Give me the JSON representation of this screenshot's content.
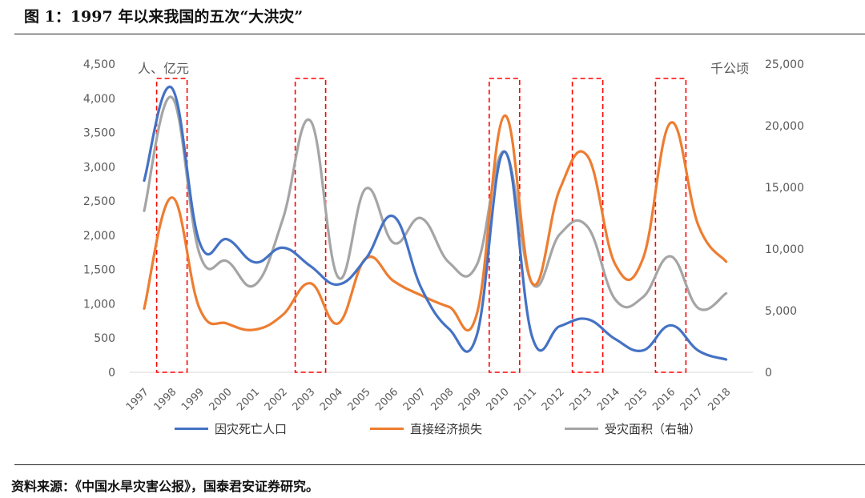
{
  "title": "图 1：1997 年以来我国的五次“大洪灾”",
  "source": "资料来源：《中国水旱灾害公报》，国泰君安证券研究。",
  "colors": {
    "deaths": "#4472C4",
    "loss": "#ED7D31",
    "area": "#A5A5A5",
    "highlight": "#FF0000",
    "axis_text": "#595959"
  },
  "chart_data": {
    "type": "line",
    "smooth": true,
    "x": [
      "1997",
      "1998",
      "1999",
      "2000",
      "2001",
      "2002",
      "2003",
      "2004",
      "2005",
      "2006",
      "2007",
      "2008",
      "2009",
      "2010",
      "2011",
      "2012",
      "2013",
      "2014",
      "2015",
      "2016",
      "2017",
      "2018"
    ],
    "left_axis": {
      "unit_label": "人、亿元",
      "range": [
        0,
        4500
      ],
      "ticks": [
        "0",
        "500",
        "1,000",
        "1,500",
        "2,000",
        "2,500",
        "3,000",
        "3,500",
        "4,000",
        "4,500"
      ]
    },
    "right_axis": {
      "unit_label": "千公顷",
      "range": [
        0,
        25000
      ],
      "ticks": [
        "0",
        "5,000",
        "10,000",
        "15,000",
        "20,000",
        "25,000"
      ]
    },
    "series": [
      {
        "name": "因灾死亡人口",
        "axis": "left",
        "color": "#4472C4",
        "values": [
          2799,
          4150,
          1896,
          1942,
          1605,
          1819,
          1551,
          1282,
          1660,
          2276,
          1230,
          633,
          538,
          3222,
          519,
          673,
          775,
          485,
          319,
          686,
          316,
          187
        ]
      },
      {
        "name": "直接经济损失",
        "axis": "left",
        "color": "#ED7D31",
        "values": [
          930,
          2551,
          930,
          711,
          623,
          838,
          1300,
          714,
          1662,
          1332,
          1123,
          955,
          846,
          3745,
          1301,
          2675,
          3155,
          1574,
          1661,
          3643,
          2143,
          1615
        ]
      },
      {
        "name": "受灾面积（右轴）",
        "axis": "right",
        "color": "#A5A5A5",
        "values": [
          13100,
          22300,
          9600,
          9000,
          7100,
          12400,
          20400,
          7700,
          14900,
          10500,
          12500,
          8900,
          8700,
          17900,
          7200,
          11200,
          11800,
          5900,
          6100,
          9400,
          5200,
          6400
        ]
      }
    ],
    "highlighted_years": [
      "1998",
      "2003",
      "2010",
      "2013",
      "2016"
    ],
    "grid": false,
    "legend_position": "bottom"
  }
}
